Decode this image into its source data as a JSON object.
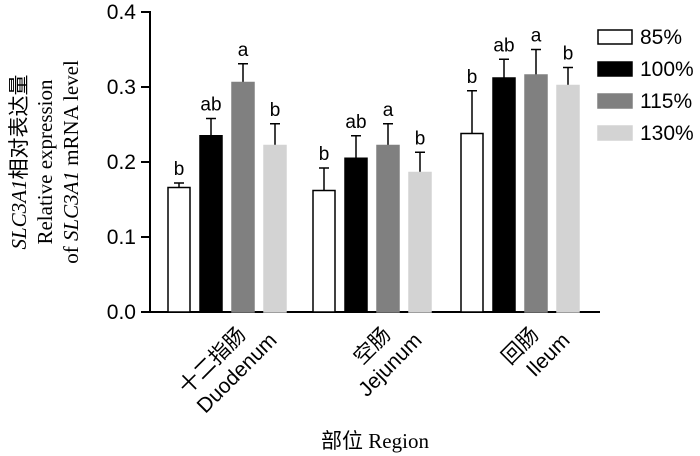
{
  "chart_data": {
    "type": "bar",
    "ylabel": {
      "line1_gene": "SLC3A1",
      "line1_cn": "相对表达量",
      "line2": "Relative expression",
      "line3_prefix": "of ",
      "line3_gene": "SLC3A1",
      "line3_suffix": " mRNA level"
    },
    "xlabel": "部位 Region",
    "ylim": [
      0,
      0.4
    ],
    "yticks": [
      "0.0",
      "0.1",
      "0.2",
      "0.3",
      "0.4"
    ],
    "categories": [
      {
        "cn": "十二指肠",
        "en": "Duodenum"
      },
      {
        "cn": "空肠",
        "en": "Jejunum"
      },
      {
        "cn": "回肠",
        "en": "Ileum"
      }
    ],
    "series": [
      {
        "name": "85%",
        "color": "#ffffff",
        "values": [
          0.166,
          0.162,
          0.238
        ],
        "errors": [
          0.006,
          0.03,
          0.057
        ],
        "labels": [
          "b",
          "b",
          "b"
        ]
      },
      {
        "name": "100%",
        "color": "#000000",
        "values": [
          0.235,
          0.205,
          0.312
        ],
        "errors": [
          0.023,
          0.03,
          0.025
        ],
        "labels": [
          "ab",
          "ab",
          "ab"
        ]
      },
      {
        "name": "115%",
        "color": "#808080",
        "values": [
          0.306,
          0.222,
          0.316
        ],
        "errors": [
          0.025,
          0.029,
          0.034
        ],
        "labels": [
          "a",
          "a",
          "a"
        ]
      },
      {
        "name": "130%",
        "color": "#d3d3d3",
        "values": [
          0.222,
          0.186,
          0.302
        ],
        "errors": [
          0.029,
          0.027,
          0.024
        ],
        "labels": [
          "b",
          "b",
          "b"
        ]
      }
    ]
  }
}
